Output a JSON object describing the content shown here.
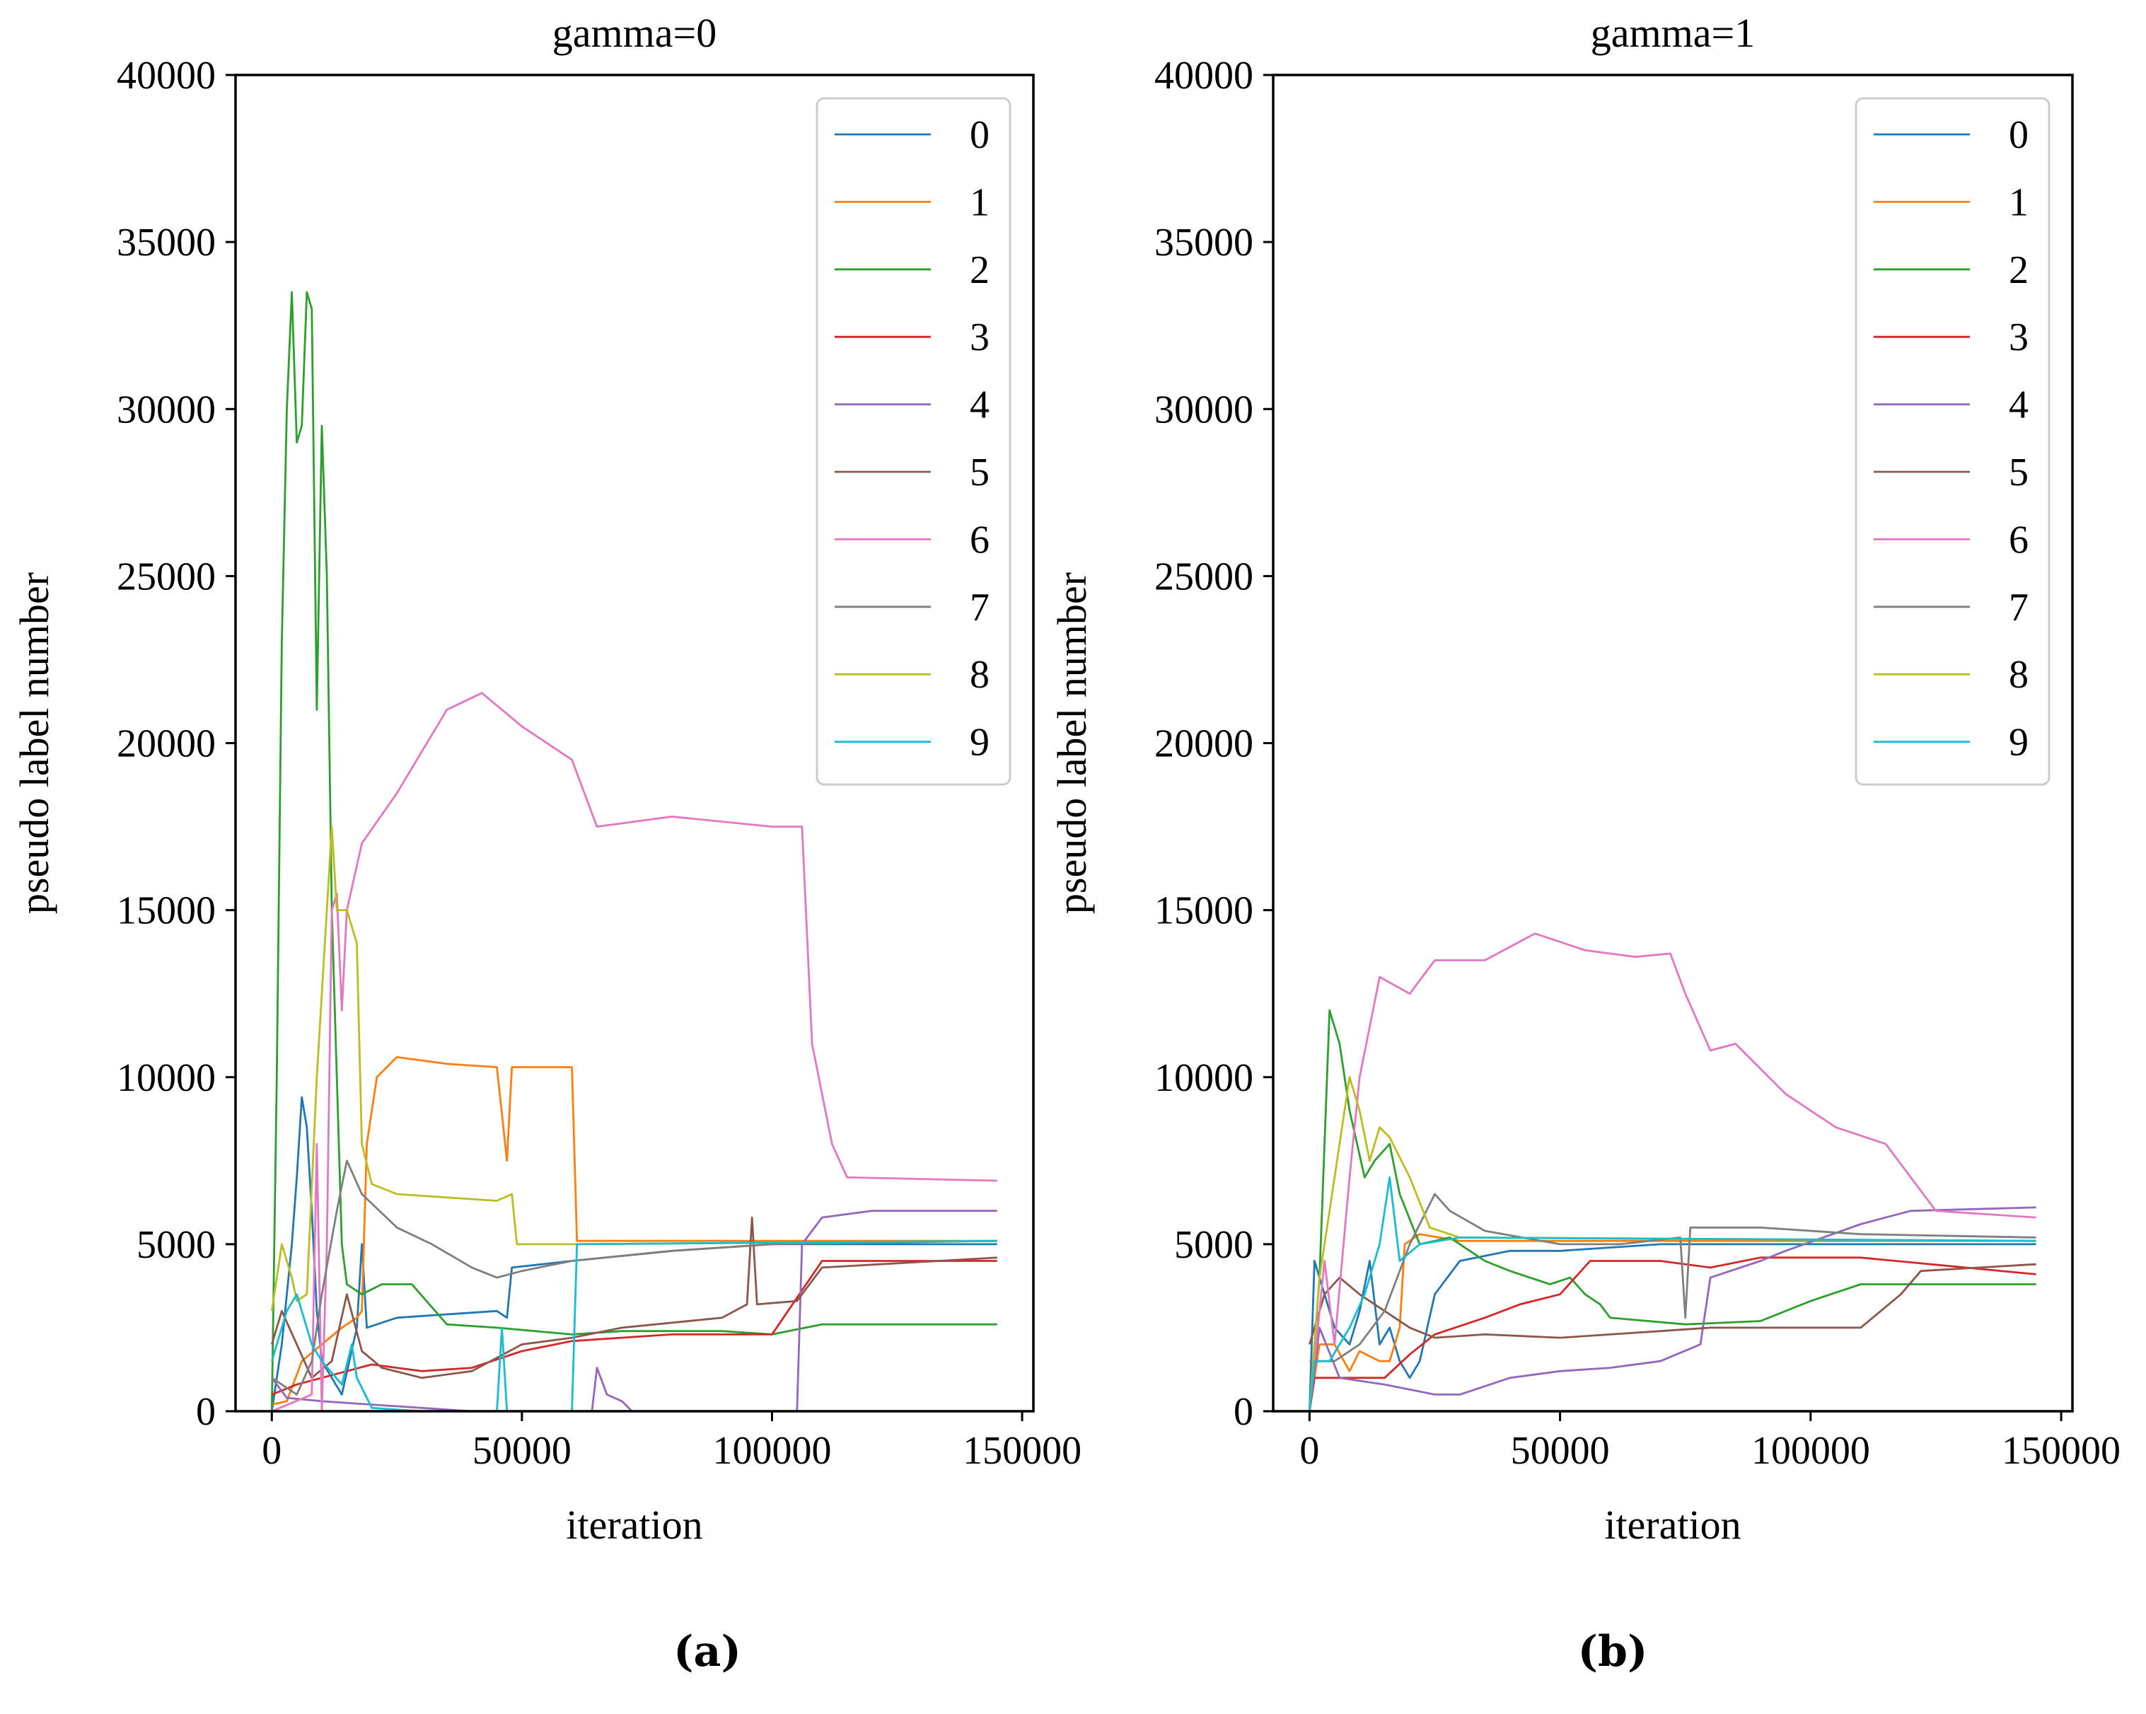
{
  "colors": [
    "#1f77b4",
    "#ff7f0e",
    "#2ca02c",
    "#d62728",
    "#9467bd",
    "#8c564b",
    "#e377c2",
    "#7f7f7f",
    "#bcbd22",
    "#17becf"
  ],
  "captions": [
    "(a)",
    "(b)"
  ],
  "chart_data": [
    {
      "type": "line",
      "title": "gamma=0",
      "xlabel": "iteration",
      "ylabel": "pseudo label number",
      "xlim": [
        -7250,
        152250
      ],
      "ylim": [
        0,
        40000
      ],
      "xticks": [
        0,
        50000,
        100000,
        150000
      ],
      "yticks": [
        0,
        5000,
        10000,
        15000,
        20000,
        25000,
        30000,
        35000,
        40000
      ],
      "grid": false,
      "legend": "top-right",
      "series": [
        {
          "name": "0",
          "x": [
            0,
            2000,
            4000,
            5000,
            6000,
            7000,
            8000,
            9000,
            10000,
            12000,
            14000,
            17000,
            18000,
            19000,
            25000,
            35000,
            45000,
            47000,
            48000,
            60000,
            80000,
            100000,
            145000
          ],
          "y": [
            0,
            2000,
            5000,
            7000,
            9400,
            8500,
            6000,
            3000,
            1500,
            1000,
            500,
            2500,
            5000,
            2500,
            2800,
            2900,
            3000,
            2800,
            4300,
            4500,
            4800,
            5000,
            5000
          ]
        },
        {
          "name": "1",
          "x": [
            0,
            3000,
            6000,
            10000,
            14000,
            17000,
            18000,
            19000,
            21000,
            25000,
            35000,
            45000,
            47000,
            48000,
            60000,
            61000,
            145000
          ],
          "y": [
            200,
            300,
            1500,
            2000,
            2500,
            2800,
            3000,
            8000,
            10000,
            10600,
            10400,
            10300,
            7500,
            10300,
            10300,
            5100,
            5100
          ]
        },
        {
          "name": "2",
          "x": [
            0,
            1000,
            2000,
            3000,
            4000,
            5000,
            6000,
            7000,
            8000,
            9000,
            10000,
            11000,
            12000,
            13000,
            14000,
            15000,
            18000,
            22000,
            28000,
            35000,
            45000,
            60000,
            70000,
            90000,
            100000,
            110000,
            145000
          ],
          "y": [
            0,
            10000,
            23000,
            30000,
            33500,
            29000,
            29500,
            33500,
            33000,
            21000,
            29500,
            25000,
            15000,
            10000,
            5000,
            3800,
            3500,
            3800,
            3800,
            2600,
            2500,
            2300,
            2400,
            2400,
            2300,
            2600,
            2600
          ]
        },
        {
          "name": "3",
          "x": [
            0,
            5000,
            10000,
            15000,
            20000,
            30000,
            40000,
            50000,
            60000,
            80000,
            100000,
            110000,
            145000
          ],
          "y": [
            500,
            800,
            1000,
            1200,
            1400,
            1200,
            1300,
            1800,
            2100,
            2300,
            2300,
            4500,
            4500
          ]
        },
        {
          "name": "4",
          "x": [
            0,
            3000,
            10000,
            20000,
            30000,
            40000,
            64000,
            65000,
            67000,
            70000,
            72000,
            105000,
            106000,
            110000,
            120000,
            145000
          ],
          "y": [
            1000,
            400,
            300,
            200,
            100,
            0,
            0,
            1300,
            500,
            300,
            0,
            0,
            5000,
            5800,
            6000,
            6000
          ]
        },
        {
          "name": "5",
          "x": [
            0,
            2000,
            5000,
            8000,
            12000,
            15000,
            18000,
            22000,
            30000,
            40000,
            50000,
            60000,
            70000,
            90000,
            95000,
            96000,
            97000,
            105000,
            110000,
            145000
          ],
          "y": [
            2000,
            3000,
            2000,
            1000,
            1500,
            3500,
            1800,
            1300,
            1000,
            1200,
            2000,
            2200,
            2500,
            2800,
            3200,
            5800,
            3200,
            3300,
            4300,
            4600
          ]
        },
        {
          "name": "6",
          "x": [
            0,
            8000,
            9000,
            10000,
            11000,
            12000,
            13000,
            14000,
            15000,
            18000,
            25000,
            35000,
            42000,
            50000,
            60000,
            65000,
            80000,
            100000,
            106000,
            108000,
            112000,
            115000,
            145000
          ],
          "y": [
            0,
            500,
            8000,
            0,
            5000,
            15000,
            15500,
            12000,
            15000,
            17000,
            18500,
            21000,
            21500,
            20500,
            19500,
            17500,
            17800,
            17500,
            17500,
            11000,
            8000,
            7000,
            6900
          ]
        },
        {
          "name": "7",
          "x": [
            0,
            5000,
            8000,
            10000,
            13000,
            15000,
            18000,
            25000,
            32000,
            40000,
            45000,
            50000,
            60000,
            80000,
            100000,
            145000
          ],
          "y": [
            1000,
            500,
            1500,
            3500,
            6000,
            7500,
            6500,
            5500,
            5000,
            4300,
            4000,
            4200,
            4500,
            4800,
            5000,
            5100
          ]
        },
        {
          "name": "8",
          "x": [
            0,
            2000,
            4000,
            5000,
            7000,
            9000,
            11000,
            12000,
            13000,
            15000,
            17000,
            18000,
            20000,
            25000,
            35000,
            45000,
            48000,
            49000,
            60000,
            145000
          ],
          "y": [
            3000,
            5000,
            4000,
            3300,
            3500,
            10000,
            15000,
            17500,
            15000,
            15000,
            14000,
            8000,
            6800,
            6500,
            6400,
            6300,
            6500,
            5000,
            5000,
            5100
          ]
        },
        {
          "name": "9",
          "x": [
            0,
            3000,
            5000,
            8000,
            10000,
            14000,
            16000,
            17000,
            20000,
            30000,
            45000,
            46000,
            47000,
            60000,
            61000,
            145000
          ],
          "y": [
            1500,
            3000,
            3500,
            2000,
            1500,
            800,
            2000,
            1000,
            100,
            0,
            0,
            2500,
            0,
            0,
            5000,
            5100
          ]
        }
      ]
    },
    {
      "type": "line",
      "title": "gamma=1",
      "xlabel": "iteration",
      "ylabel": "pseudo label number",
      "xlim": [
        -7250,
        152250
      ],
      "ylim": [
        0,
        40000
      ],
      "xticks": [
        0,
        50000,
        100000,
        150000
      ],
      "yticks": [
        0,
        5000,
        10000,
        15000,
        20000,
        25000,
        30000,
        35000,
        40000
      ],
      "grid": false,
      "legend": "top-right",
      "series": [
        {
          "name": "0",
          "x": [
            0,
            1000,
            3000,
            5000,
            8000,
            10000,
            12000,
            14000,
            16000,
            18000,
            20000,
            22000,
            25000,
            30000,
            40000,
            50000,
            70000,
            100000,
            145000
          ],
          "y": [
            0,
            4500,
            3500,
            2500,
            2000,
            3000,
            4500,
            2000,
            2500,
            1500,
            1000,
            1500,
            3500,
            4500,
            4800,
            4800,
            5000,
            5000,
            5000
          ]
        },
        {
          "name": "1",
          "x": [
            0,
            2000,
            5000,
            8000,
            10000,
            14000,
            16000,
            18000,
            19000,
            22000,
            30000,
            145000
          ],
          "y": [
            0,
            2000,
            2000,
            1200,
            1800,
            1500,
            1500,
            2500,
            5000,
            5300,
            5100,
            5100
          ]
        },
        {
          "name": "2",
          "x": [
            0,
            2000,
            3000,
            4000,
            6000,
            8000,
            11000,
            13000,
            16000,
            18000,
            22000,
            28000,
            35000,
            40000,
            48000,
            52000,
            55000,
            58000,
            60000,
            75000,
            90000,
            100000,
            110000,
            145000
          ],
          "y": [
            0,
            4000,
            8000,
            12000,
            11000,
            9000,
            7000,
            7500,
            8000,
            6500,
            5000,
            5200,
            4500,
            4200,
            3800,
            4000,
            3500,
            3200,
            2800,
            2600,
            2700,
            3300,
            3800,
            3800
          ]
        },
        {
          "name": "3",
          "x": [
            0,
            1000,
            10000,
            15000,
            20000,
            25000,
            35000,
            42000,
            50000,
            56000,
            70000,
            80000,
            90000,
            110000,
            145000
          ],
          "y": [
            0,
            1000,
            1000,
            1000,
            1700,
            2300,
            2800,
            3200,
            3500,
            4500,
            4500,
            4300,
            4600,
            4600,
            4100
          ]
        },
        {
          "name": "4",
          "x": [
            0,
            2000,
            6000,
            15000,
            25000,
            30000,
            40000,
            50000,
            60000,
            70000,
            78000,
            80000,
            90000,
            95000,
            110000,
            120000,
            145000
          ],
          "y": [
            0,
            2500,
            1000,
            800,
            500,
            500,
            1000,
            1200,
            1300,
            1500,
            2000,
            4000,
            4500,
            4800,
            5600,
            6000,
            6100
          ]
        },
        {
          "name": "5",
          "x": [
            0,
            3000,
            6000,
            10000,
            15000,
            20000,
            25000,
            35000,
            50000,
            60000,
            70000,
            80000,
            110000,
            118000,
            122000,
            145000
          ],
          "y": [
            2000,
            3500,
            4000,
            3500,
            3000,
            2500,
            2200,
            2300,
            2200,
            2300,
            2400,
            2500,
            2500,
            3500,
            4200,
            4400
          ]
        },
        {
          "name": "6",
          "x": [
            0,
            3000,
            5000,
            8000,
            10000,
            14000,
            20000,
            25000,
            35000,
            45000,
            55000,
            65000,
            72000,
            75000,
            80000,
            85000,
            95000,
            105000,
            115000,
            125000,
            145000
          ],
          "y": [
            0,
            4500,
            2000,
            7000,
            10000,
            13000,
            12500,
            13500,
            13500,
            14300,
            13800,
            13600,
            13700,
            12500,
            10800,
            11000,
            9500,
            8500,
            8000,
            6000,
            5800
          ]
        },
        {
          "name": "7",
          "x": [
            0,
            5000,
            10000,
            15000,
            20000,
            25000,
            28000,
            35000,
            50000,
            62000,
            74000,
            75000,
            76000,
            90000,
            110000,
            145000
          ],
          "y": [
            1500,
            1500,
            2000,
            3000,
            5000,
            6500,
            6000,
            5400,
            5000,
            5000,
            5200,
            2800,
            5500,
            5500,
            5300,
            5200
          ]
        },
        {
          "name": "8",
          "x": [
            0,
            2000,
            5000,
            8000,
            10000,
            12000,
            14000,
            16000,
            20000,
            24000,
            30000,
            145000
          ],
          "y": [
            0,
            4000,
            7000,
            10000,
            9000,
            7500,
            8500,
            8200,
            7000,
            5500,
            5200,
            5100
          ]
        },
        {
          "name": "9",
          "x": [
            0,
            1000,
            4000,
            8000,
            11000,
            14000,
            16000,
            18000,
            22000,
            30000,
            145000
          ],
          "y": [
            0,
            1500,
            1500,
            2500,
            3500,
            5000,
            7000,
            4500,
            5000,
            5200,
            5100
          ]
        }
      ]
    }
  ]
}
